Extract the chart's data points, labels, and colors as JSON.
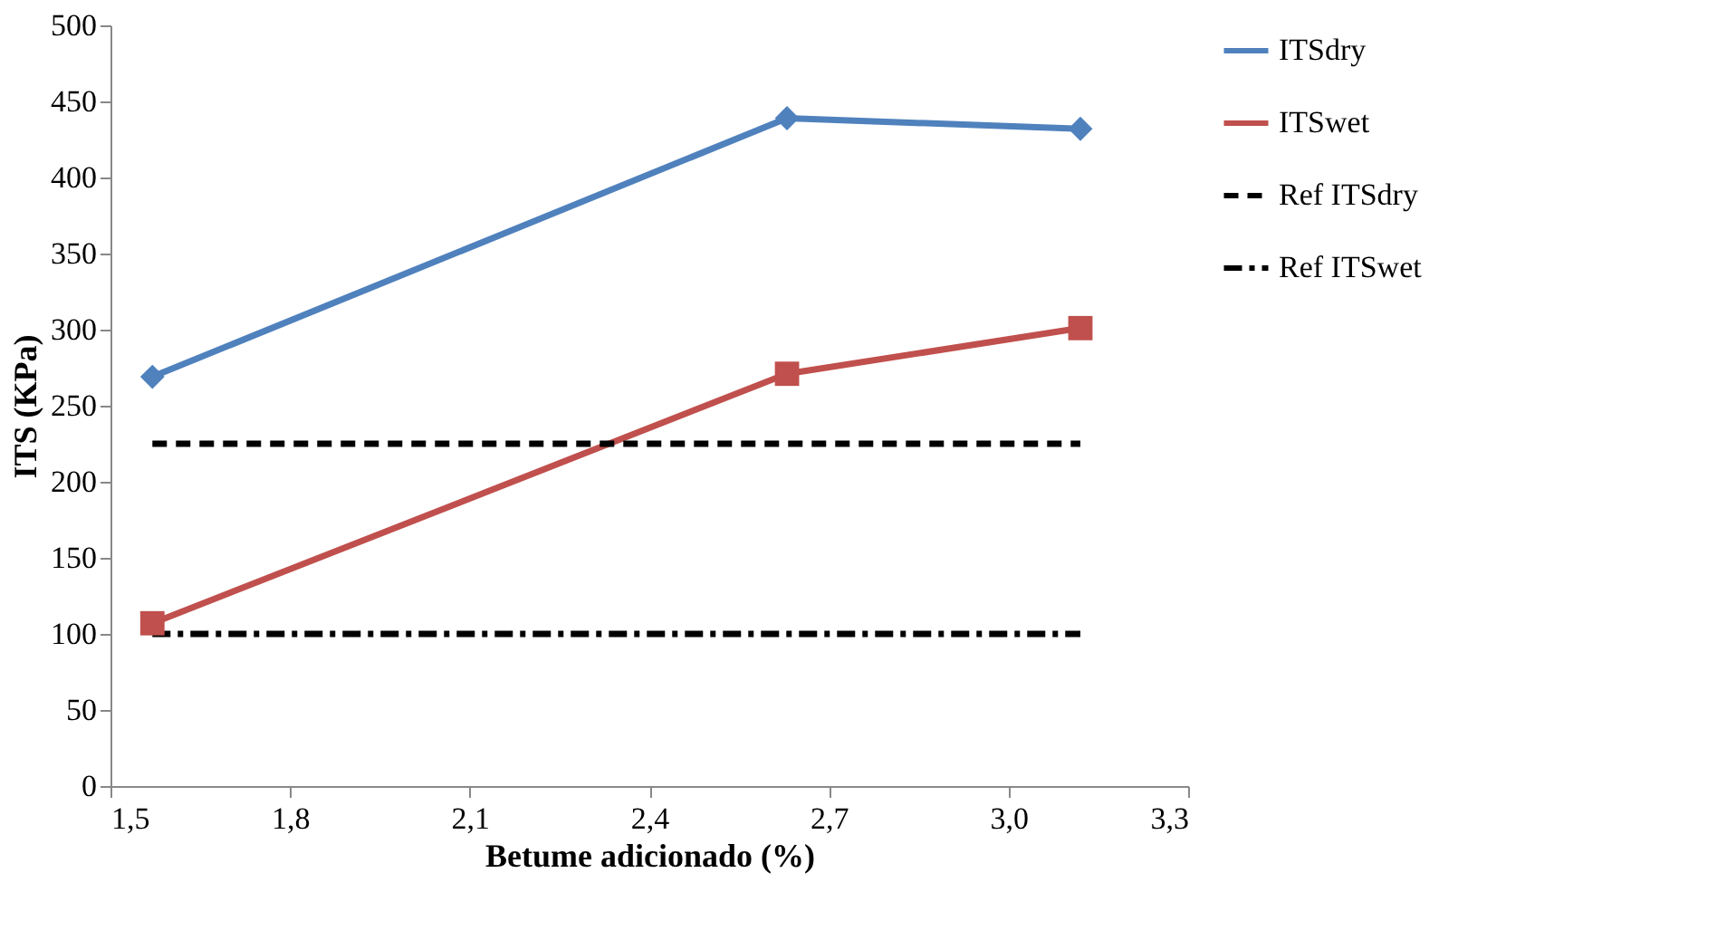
{
  "chart_data": {
    "type": "line",
    "xlabel": "Betume adicionado (%)",
    "ylabel": "ITS (KPa)",
    "xlim": [
      1.5,
      3.3
    ],
    "xticks": [
      {
        "value": 1.5,
        "label": "1,5"
      },
      {
        "value": 1.8,
        "label": "1,8"
      },
      {
        "value": 2.1,
        "label": "2,1"
      },
      {
        "value": 2.4,
        "label": "2,4"
      },
      {
        "value": 2.7,
        "label": "2,7"
      },
      {
        "value": 3.0,
        "label": "3,0"
      },
      {
        "value": 3.3,
        "label": "3,3"
      }
    ],
    "ylim": [
      0,
      500
    ],
    "yticks": [
      0,
      50,
      100,
      150,
      200,
      250,
      300,
      350,
      400,
      450,
      500
    ],
    "grid": false,
    "legend": "right",
    "series": [
      {
        "name": "ITSdry",
        "color": "#4f81bd",
        "x": [
          1.57,
          2.63,
          3.12
        ],
        "values": [
          269,
          439,
          432
        ],
        "marker": "diamond",
        "line_style": "solid"
      },
      {
        "name": "ITSwet",
        "color": "#c0504d",
        "x": [
          1.57,
          2.63,
          3.12
        ],
        "values": [
          107,
          271,
          301
        ],
        "marker": "square",
        "line_style": "solid"
      },
      {
        "name": "Ref ITSdry",
        "color": "#000000",
        "x": [
          1.57,
          3.12
        ],
        "values": [
          225,
          225
        ],
        "marker": "none",
        "line_style": "dashed"
      },
      {
        "name": "Ref ITSwet",
        "color": "#000000",
        "x": [
          1.57,
          3.12
        ],
        "values": [
          100,
          100
        ],
        "marker": "none",
        "line_style": "dashdot"
      }
    ]
  }
}
